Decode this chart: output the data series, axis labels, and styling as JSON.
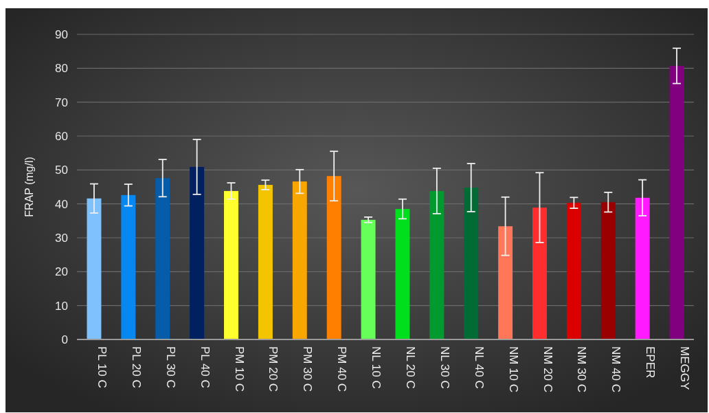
{
  "chart_data": {
    "type": "bar",
    "ylabel": "FRAP (mg/l)",
    "categories": [
      "PL 10 C",
      "PL 20 C",
      "PL 30 C",
      "PL 40 C",
      "PM 10 C",
      "PM 20 C",
      "PM 30 C",
      "PM 40 C",
      "NL 10 C",
      "NL 20 C",
      "NL 30 C",
      "NL 40 C",
      "NM 10 C",
      "NM 20 C",
      "NM 30 C",
      "NM 40 C",
      "EPER",
      "MEGGY"
    ],
    "values": [
      41.6,
      42.6,
      47.6,
      50.9,
      43.8,
      45.6,
      46.6,
      48.2,
      35.3,
      38.5,
      43.8,
      44.8,
      33.4,
      38.9,
      40.3,
      40.5,
      41.8,
      80.7
    ],
    "errors": [
      4.3,
      3.2,
      5.5,
      8.1,
      2.4,
      1.4,
      3.5,
      7.3,
      0.8,
      2.9,
      6.7,
      7.1,
      8.6,
      10.3,
      1.6,
      2.9,
      5.3,
      5.2
    ],
    "colors": [
      "#7fc1fd",
      "#0788f0",
      "#065ca8",
      "#002060",
      "#ffff2e",
      "#f2c500",
      "#f9a600",
      "#ff8000",
      "#66ff5a",
      "#00df1c",
      "#009a2e",
      "#006b35",
      "#ff7659",
      "#ff2d2d",
      "#db0000",
      "#990000",
      "#ff1aff",
      "#800080"
    ],
    "ylim": [
      0,
      90
    ],
    "yticks": [
      0,
      10,
      20,
      30,
      40,
      50,
      60,
      70,
      80,
      90
    ],
    "grid": "y"
  }
}
